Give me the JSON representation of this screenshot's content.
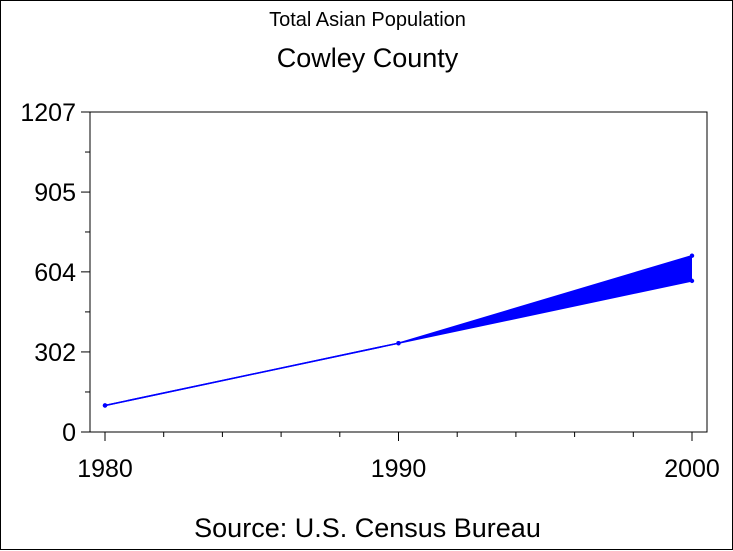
{
  "chart_data": {
    "type": "line",
    "title": "Total Asian Population",
    "subtitle": "Cowley County",
    "footnote": "Source: U.S. Census Bureau",
    "xlabel": "",
    "ylabel": "",
    "x_ticks": [
      "1980",
      "1990",
      "2000"
    ],
    "y_ticks": [
      "0",
      "302",
      "604",
      "905",
      "1207"
    ],
    "xlim": [
      1980,
      2000
    ],
    "ylim": [
      0,
      1207
    ],
    "grid": false,
    "series": [
      {
        "color": "#0000ff",
        "points": [
          {
            "x": 1980,
            "y": 100
          },
          {
            "x": 1990,
            "y": 335
          },
          {
            "x": 2000,
            "y": 570
          }
        ]
      },
      {
        "color": "#0000ff",
        "points": [
          {
            "x": 1980,
            "y": 100
          },
          {
            "x": 1990,
            "y": 335
          },
          {
            "x": 2000,
            "y": 665
          }
        ]
      }
    ]
  }
}
